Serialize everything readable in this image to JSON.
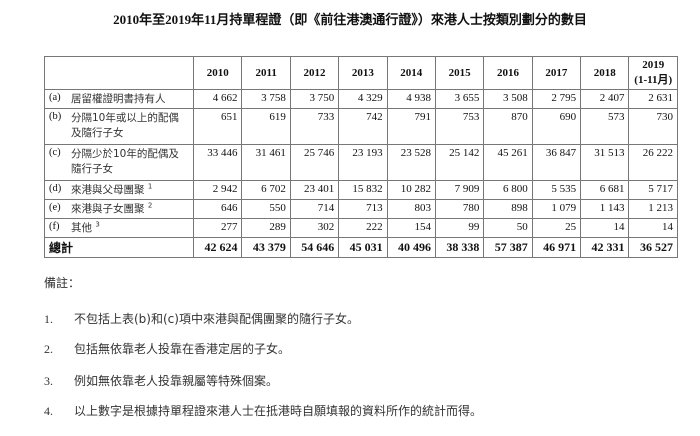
{
  "title": "2010年至2019年11月持單程證（即《前往港澳通行證》）來港人士按類別劃分的數目",
  "table": {
    "columns": [
      "2010",
      "2011",
      "2012",
      "2013",
      "2014",
      "2015",
      "2016",
      "2017",
      "2018",
      "2019\n(1-11月)"
    ],
    "rows": [
      {
        "key": "(a)",
        "label": "居留權證明書持有人",
        "sup": "",
        "values": [
          "4 662",
          "3 758",
          "3 750",
          "4 329",
          "4 938",
          "3 655",
          "3 508",
          "2 795",
          "2 407",
          "2  631"
        ]
      },
      {
        "key": "(b)",
        "label": "分隔10年或以上的配偶及隨行子女",
        "sup": "",
        "values": [
          "651",
          "619",
          "733",
          "742",
          "791",
          "753",
          "870",
          "690",
          "573",
          "730"
        ]
      },
      {
        "key": "(c)",
        "label": "分隔少於10年的配偶及隨行子女",
        "sup": "",
        "values": [
          "33 446",
          "31 461",
          "25 746",
          "23 193",
          "23 528",
          "25 142",
          "45 261",
          "36 847",
          "31 513",
          "26  222"
        ]
      },
      {
        "key": "(d)",
        "label": "來港與父母團聚",
        "sup": "1",
        "values": [
          "2 942",
          "6 702",
          "23 401",
          "15 832",
          "10 282",
          "7 909",
          "6 800",
          "5 535",
          "6 681",
          "5  717"
        ]
      },
      {
        "key": "(e)",
        "label": "來港與子女團聚",
        "sup": "2",
        "values": [
          "646",
          "550",
          "714",
          "713",
          "803",
          "780",
          "898",
          "1 079",
          "1 143",
          "1 213"
        ]
      },
      {
        "key": "(f)",
        "label": "其他",
        "sup": "3",
        "values": [
          "277",
          "289",
          "302",
          "222",
          "154",
          "99",
          "50",
          "25",
          "14",
          "14"
        ]
      }
    ],
    "total": {
      "label": "總計",
      "values": [
        "42 624",
        "43 379",
        "54 646",
        "45 031",
        "40 496",
        "38 338",
        "57 387",
        "46 971",
        "42 331",
        "36  527"
      ]
    }
  },
  "notes": {
    "heading": "備註：",
    "items": [
      {
        "num": "1.",
        "text": "不包括上表(b)和(c)項中來港與配偶團聚的隨行子女。"
      },
      {
        "num": "2.",
        "text": "包括無依靠老人投靠在香港定居的子女。"
      },
      {
        "num": "3.",
        "text": "例如無依靠老人投靠親屬等特殊個案。"
      },
      {
        "num": "4.",
        "text": "以上數字是根據持單程證來港人士在抵港時自願填報的資料所作的統計而得。"
      }
    ]
  }
}
